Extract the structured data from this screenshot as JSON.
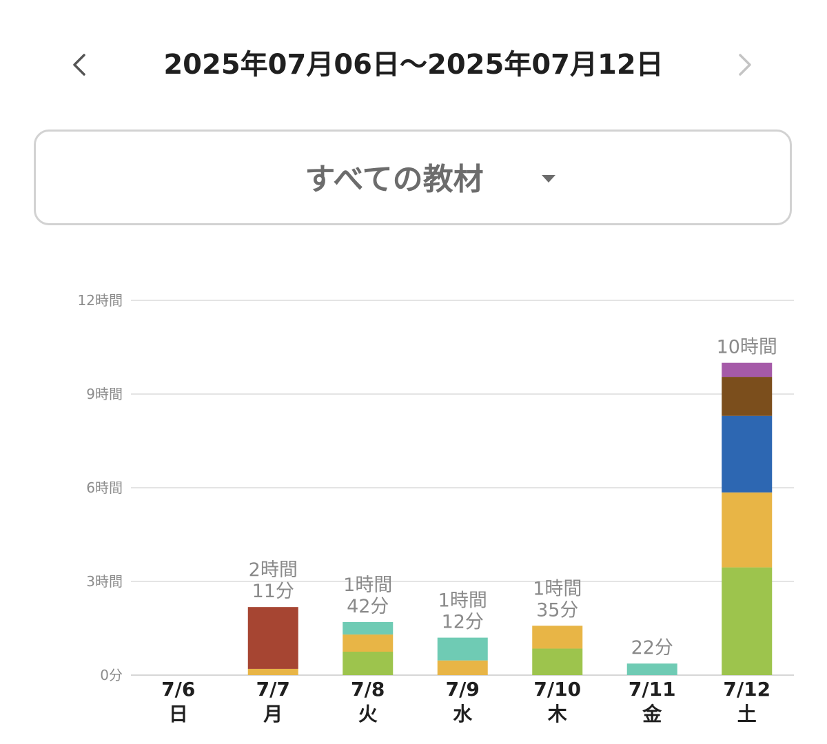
{
  "header": {
    "title": "2025年07月06日〜2025年07月12日",
    "prev_icon": "chevron-left-icon",
    "next_icon": "chevron-right-icon"
  },
  "filter": {
    "label": "すべての教材",
    "icon": "caret-down-icon"
  },
  "chart_data": {
    "type": "bar",
    "stacked": true,
    "unit": "hours",
    "ylim": [
      0,
      12
    ],
    "yticks": [
      {
        "value": 0,
        "label": "0分"
      },
      {
        "value": 3,
        "label": "3時間"
      },
      {
        "value": 6,
        "label": "6時間"
      },
      {
        "value": 9,
        "label": "9時間"
      },
      {
        "value": 12,
        "label": "12時間"
      }
    ],
    "grid": true,
    "categories": [
      {
        "date": "7/6",
        "weekday": "日"
      },
      {
        "date": "7/7",
        "weekday": "月"
      },
      {
        "date": "7/8",
        "weekday": "火"
      },
      {
        "date": "7/9",
        "weekday": "水"
      },
      {
        "date": "7/10",
        "weekday": "木"
      },
      {
        "date": "7/11",
        "weekday": "金"
      },
      {
        "date": "7/12",
        "weekday": "土"
      }
    ],
    "totals": [
      [],
      [
        "2時間",
        "11分"
      ],
      [
        "1時間",
        "42分"
      ],
      [
        "1時間",
        "12分"
      ],
      [
        "1時間",
        "35分"
      ],
      [
        "22分"
      ],
      [
        "10時間"
      ]
    ],
    "series": [
      {
        "color": "#9dc44d",
        "values": [
          0,
          0,
          0.75,
          0,
          0.85,
          0,
          3.45
        ]
      },
      {
        "color": "#e8b546",
        "values": [
          0,
          0.2,
          0.55,
          0.47,
          0.73,
          0,
          2.4
        ]
      },
      {
        "color": "#a64532",
        "values": [
          0,
          1.98,
          0,
          0,
          0,
          0,
          0
        ]
      },
      {
        "color": "#6fcbb4",
        "values": [
          0,
          0,
          0.4,
          0.73,
          0,
          0.37,
          0
        ]
      },
      {
        "color": "#2d67b2",
        "values": [
          0,
          0,
          0,
          0,
          0,
          0,
          2.45
        ]
      },
      {
        "color": "#7b4e1c",
        "values": [
          0,
          0,
          0,
          0,
          0,
          0,
          1.25
        ]
      },
      {
        "color": "#a55aa8",
        "values": [
          0,
          0,
          0,
          0,
          0,
          0,
          0.45
        ]
      }
    ]
  }
}
